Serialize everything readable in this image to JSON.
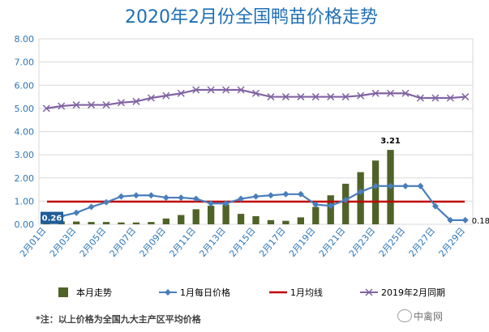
{
  "chart_data": {
    "type": "bar+line",
    "title": "2020年2月份全国鸭苗价格走势",
    "ylim": [
      0,
      8
    ],
    "yticks": [
      "0.00",
      "1.00",
      "2.00",
      "3.00",
      "4.00",
      "5.00",
      "6.00",
      "7.00",
      "8.00"
    ],
    "categories": [
      "1",
      "2",
      "3",
      "4",
      "5",
      "6",
      "7",
      "8",
      "9",
      "10",
      "11",
      "12",
      "13",
      "14",
      "15",
      "16",
      "17",
      "18",
      "19",
      "20",
      "21",
      "22",
      "23",
      "24",
      "25",
      "26",
      "27",
      "28",
      "29"
    ],
    "xtick_labels": [
      "2月01日",
      "2月03日",
      "2月05日",
      "2月07日",
      "2月09日",
      "2月11日",
      "2月13日",
      "2月15日",
      "2月17日",
      "2月19日",
      "2月21日",
      "2月23日",
      "2月25日",
      "2月27日",
      "2月29日"
    ],
    "series": [
      {
        "name": "本月走势",
        "kind": "bar",
        "color": "#4f6228",
        "values": [
          0.26,
          0.13,
          0.12,
          0.1,
          0.1,
          0.08,
          0.08,
          0.1,
          0.25,
          0.4,
          0.65,
          0.8,
          0.85,
          0.45,
          0.35,
          0.18,
          0.15,
          0.3,
          0.75,
          1.25,
          1.75,
          2.25,
          2.75,
          3.21,
          null,
          null,
          null,
          null,
          null
        ]
      },
      {
        "name": "1月每日价格",
        "kind": "line",
        "color": "#4a7ebb",
        "marker": "diamond",
        "values": [
          0.26,
          0.35,
          0.5,
          0.75,
          0.95,
          1.2,
          1.25,
          1.25,
          1.15,
          1.15,
          1.1,
          0.9,
          0.9,
          1.1,
          1.2,
          1.25,
          1.3,
          1.3,
          0.85,
          0.8,
          1.05,
          1.4,
          1.65,
          1.65,
          1.65,
          1.65,
          0.78,
          0.18,
          0.18
        ]
      },
      {
        "name": "1月均线",
        "kind": "hline",
        "color": "#c00000",
        "value": 0.98
      },
      {
        "name": "2019年2月同期",
        "kind": "line",
        "color": "#8064a2",
        "marker": "x",
        "values": [
          5.0,
          5.1,
          5.15,
          5.15,
          5.15,
          5.25,
          5.3,
          5.45,
          5.55,
          5.65,
          5.8,
          5.8,
          5.8,
          5.8,
          5.65,
          5.5,
          5.5,
          5.5,
          5.5,
          5.5,
          5.5,
          5.55,
          5.65,
          5.65,
          5.65,
          5.45,
          5.45,
          5.45,
          5.5
        ]
      }
    ],
    "data_labels": [
      {
        "series": "本月走势",
        "index": 0,
        "text": "0.26"
      },
      {
        "series": "本月走势",
        "index": 23,
        "text": "3.21"
      },
      {
        "series": "1月每日价格",
        "index": 28,
        "text": "0.18"
      }
    ],
    "grid": true,
    "legend_position": "bottom"
  },
  "footnote": "*注：以上价格为全国九大主产区平均价格",
  "watermark": "中禽网"
}
